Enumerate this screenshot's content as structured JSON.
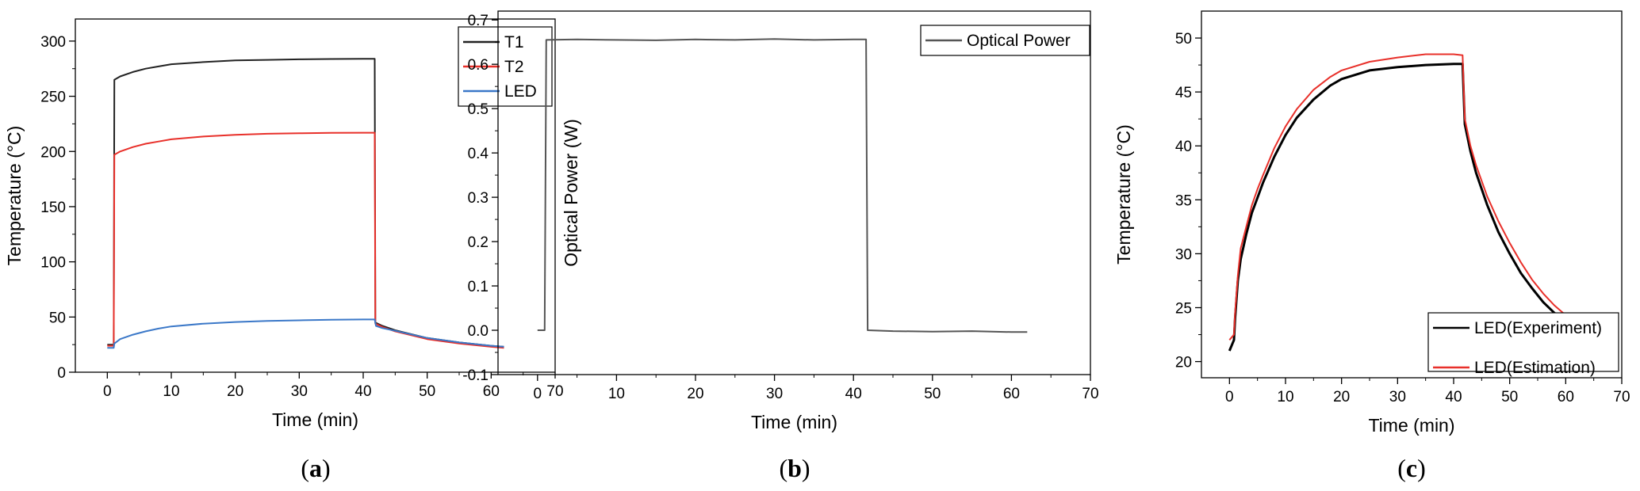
{
  "chart_data": [
    {
      "type": "line",
      "panel_label": "(a)",
      "panel_letter": "a",
      "xlabel": "Time (min)",
      "ylabel": "Temperature (°C)",
      "xlim": [
        -5,
        70
      ],
      "ylim": [
        0,
        320
      ],
      "xticks": [
        0,
        10,
        20,
        30,
        40,
        50,
        60,
        70
      ],
      "yticks": [
        0,
        50,
        100,
        150,
        200,
        250,
        300
      ],
      "legend_position": "top-right",
      "series": [
        {
          "name": "T1",
          "color": "#222222",
          "x": [
            0,
            1,
            1.1,
            2,
            4,
            6,
            8,
            10,
            15,
            20,
            25,
            30,
            35,
            40,
            41.8,
            41.9,
            43,
            45,
            50,
            55,
            60,
            62
          ],
          "y": [
            25,
            25,
            265,
            268,
            272,
            275,
            277,
            279,
            281,
            282.5,
            283,
            283.5,
            283.8,
            284,
            284,
            45,
            42,
            38,
            31,
            27,
            24,
            23
          ]
        },
        {
          "name": "T2",
          "color": "#e8302a",
          "x": [
            0,
            1,
            1.1,
            2,
            4,
            6,
            8,
            10,
            15,
            20,
            25,
            30,
            35,
            40,
            41.8,
            41.9,
            43,
            45,
            50,
            55,
            60,
            62
          ],
          "y": [
            24,
            24,
            197,
            200,
            204,
            207,
            209,
            211,
            213.5,
            215,
            216,
            216.5,
            216.8,
            217,
            217,
            44,
            41,
            37,
            30,
            26,
            23,
            22
          ]
        },
        {
          "name": "LED",
          "color": "#3b78c8",
          "x": [
            0,
            1,
            1.1,
            2,
            4,
            6,
            8,
            10,
            15,
            20,
            25,
            30,
            35,
            40,
            41.8,
            42,
            43,
            45,
            50,
            55,
            60,
            62
          ],
          "y": [
            22,
            22,
            26,
            30,
            34,
            37,
            39.5,
            41.5,
            44,
            45.5,
            46.5,
            47,
            47.5,
            47.8,
            47.8,
            42,
            40,
            37.5,
            31,
            27,
            24,
            23
          ]
        }
      ]
    },
    {
      "type": "line",
      "panel_label": "(b)",
      "panel_letter": "b",
      "xlabel": "Time (min)",
      "ylabel": "Optical Power (W)",
      "xlim": [
        -5,
        70
      ],
      "ylim": [
        -0.1,
        0.72
      ],
      "xticks": [
        0,
        10,
        20,
        30,
        40,
        50,
        60,
        70
      ],
      "yticks": [
        -0.1,
        0.0,
        0.1,
        0.2,
        0.3,
        0.4,
        0.5,
        0.6,
        0.7
      ],
      "legend_position": "top-right",
      "series": [
        {
          "name": "Optical Power",
          "color": "#555555",
          "x": [
            0,
            0.9,
            1.1,
            5,
            10,
            15,
            20,
            25,
            30,
            35,
            40,
            41.6,
            41.8,
            45,
            50,
            55,
            60,
            62
          ],
          "y": [
            0.0,
            0.0,
            0.655,
            0.656,
            0.655,
            0.654,
            0.656,
            0.655,
            0.657,
            0.655,
            0.656,
            0.656,
            0.0,
            -0.002,
            -0.003,
            -0.002,
            -0.004,
            -0.004
          ]
        }
      ]
    },
    {
      "type": "line",
      "panel_label": "(c)",
      "panel_letter": "c",
      "xlabel": "Time (min)",
      "ylabel": "Temperature (°C)",
      "xlim": [
        -5,
        70
      ],
      "ylim": [
        18.5,
        52.5
      ],
      "xticks": [
        0,
        10,
        20,
        30,
        40,
        50,
        60,
        70
      ],
      "yticks": [
        20,
        25,
        30,
        35,
        40,
        45,
        50
      ],
      "legend_position": "bottom-right",
      "series": [
        {
          "name": "LED(Experiment)",
          "color": "#000000",
          "x": [
            0,
            0.8,
            1,
            1.5,
            2,
            3,
            4,
            5,
            6,
            8,
            10,
            12,
            15,
            18,
            20,
            25,
            30,
            35,
            40,
            41.6,
            42,
            43,
            44,
            46,
            48,
            50,
            52,
            54,
            56,
            58,
            60,
            61.5
          ],
          "y": [
            21,
            22,
            24,
            27.5,
            29.5,
            31.8,
            33.8,
            35.2,
            36.6,
            39,
            41,
            42.6,
            44.3,
            45.6,
            46.2,
            47,
            47.3,
            47.5,
            47.6,
            47.6,
            42,
            39.5,
            37.5,
            34.5,
            32,
            30,
            28.2,
            26.8,
            25.5,
            24.5,
            23.6,
            23.1
          ]
        },
        {
          "name": "LED(Estimation)",
          "color": "#e8302a",
          "x": [
            0,
            0.8,
            1,
            1.5,
            2,
            3,
            4,
            5,
            6,
            8,
            10,
            12,
            15,
            18,
            20,
            25,
            30,
            35,
            40,
            41.6,
            42,
            43,
            44,
            46,
            48,
            50,
            52,
            54,
            56,
            58,
            60,
            61.5
          ],
          "y": [
            22,
            22.5,
            24.5,
            28,
            30.5,
            32.5,
            34.5,
            36,
            37.3,
            39.8,
            41.8,
            43.4,
            45.2,
            46.4,
            47,
            47.8,
            48.2,
            48.5,
            48.5,
            48.4,
            42.5,
            40,
            38.2,
            35.3,
            33,
            31,
            29.2,
            27.6,
            26.3,
            25.2,
            24.3,
            23.8
          ]
        }
      ]
    }
  ]
}
